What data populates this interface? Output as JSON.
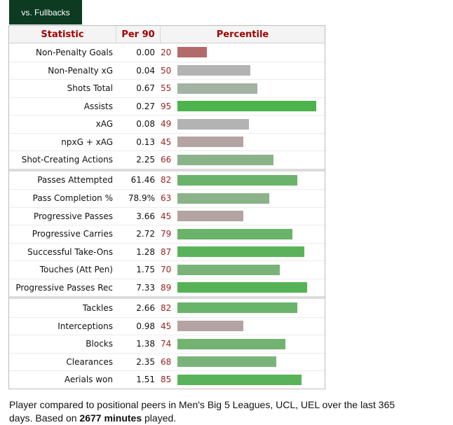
{
  "tab": {
    "label": "vs. Fullbacks"
  },
  "header": {
    "statistic": "Statistic",
    "per90": "Per 90",
    "percentile": "Percentile"
  },
  "groups": [
    [
      {
        "stat": "Non-Penalty Goals",
        "per90": "0.00",
        "percentile": 20,
        "color": "#b36a6a"
      },
      {
        "stat": "Non-Penalty xG",
        "per90": "0.04",
        "percentile": 50,
        "color": "#b3b3b3"
      },
      {
        "stat": "Shots Total",
        "per90": "0.67",
        "percentile": 55,
        "color": "#a3b3a3"
      },
      {
        "stat": "Assists",
        "per90": "0.27",
        "percentile": 95,
        "color": "#4db34d"
      },
      {
        "stat": "xAG",
        "per90": "0.08",
        "percentile": 49,
        "color": "#b3b3b3"
      },
      {
        "stat": "npxG + xAG",
        "per90": "0.13",
        "percentile": 45,
        "color": "#b3a3a3"
      },
      {
        "stat": "Shot-Creating Actions",
        "per90": "2.25",
        "percentile": 66,
        "color": "#8ab38a"
      }
    ],
    [
      {
        "stat": "Passes Attempted",
        "per90": "61.46",
        "percentile": 82,
        "color": "#6ab36a"
      },
      {
        "stat": "Pass Completion %",
        "per90": "78.9%",
        "percentile": 63,
        "color": "#8ab38a"
      },
      {
        "stat": "Progressive Passes",
        "per90": "3.66",
        "percentile": 45,
        "color": "#b3a3a3"
      },
      {
        "stat": "Progressive Carries",
        "per90": "2.72",
        "percentile": 79,
        "color": "#6ab36a"
      },
      {
        "stat": "Successful Take-Ons",
        "per90": "1.28",
        "percentile": 87,
        "color": "#5ab35a"
      },
      {
        "stat": "Touches (Att Pen)",
        "per90": "1.75",
        "percentile": 70,
        "color": "#7ab37a"
      },
      {
        "stat": "Progressive Passes Rec",
        "per90": "7.33",
        "percentile": 89,
        "color": "#55b355"
      }
    ],
    [
      {
        "stat": "Tackles",
        "per90": "2.66",
        "percentile": 82,
        "color": "#6ab36a"
      },
      {
        "stat": "Interceptions",
        "per90": "0.98",
        "percentile": 45,
        "color": "#b3a3a3"
      },
      {
        "stat": "Blocks",
        "per90": "1.38",
        "percentile": 74,
        "color": "#72b372"
      },
      {
        "stat": "Clearances",
        "per90": "2.35",
        "percentile": 68,
        "color": "#7ab37a"
      },
      {
        "stat": "Aerials won",
        "per90": "1.51",
        "percentile": 85,
        "color": "#5ab35a"
      }
    ]
  ],
  "note": {
    "text_before": "Player compared to positional peers in Men's Big 5 Leagues, UCL, UEL over the last 365 days. Based on ",
    "minutes": "2677 minutes",
    "text_after": " played."
  }
}
